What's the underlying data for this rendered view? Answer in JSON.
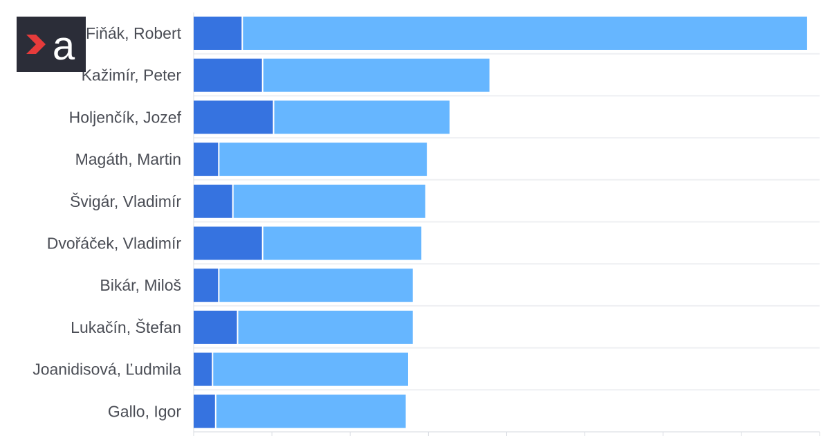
{
  "brand": {
    "logo_text": "a",
    "logo_icon": "aktuality-logo",
    "logo_bg": "#2b2d38",
    "logo_accent": "#e63b3b"
  },
  "chart_data": {
    "type": "bar",
    "orientation": "horizontal",
    "stacked": true,
    "categories": [
      "Fiňák, Robert",
      "Kažimír, Peter",
      "Holjenčík, Jozef",
      "Magáth, Martin",
      "Švigár, Vladimír",
      "Dvořáček, Vladimír",
      "Bikár, Miloš",
      "Lukačín, Štefan",
      "Joanidisová, Ľudmila",
      "Gallo, Igor"
    ],
    "series": [
      {
        "color": "#3673e0",
        "values": [
          6.3,
          8.9,
          10.3,
          3.3,
          5.1,
          8.9,
          3.3,
          5.7,
          2.5,
          2.9
        ]
      },
      {
        "color": "#66b6ff",
        "values": [
          72.1,
          28.9,
          22.4,
          26.5,
          24.5,
          20.2,
          24.7,
          22.3,
          24.9,
          24.2
        ]
      }
    ],
    "xlim": [
      0,
      80
    ],
    "x_grid_step": 10,
    "grid": true,
    "legend": "none",
    "title": "",
    "xlabel": "",
    "ylabel": ""
  }
}
